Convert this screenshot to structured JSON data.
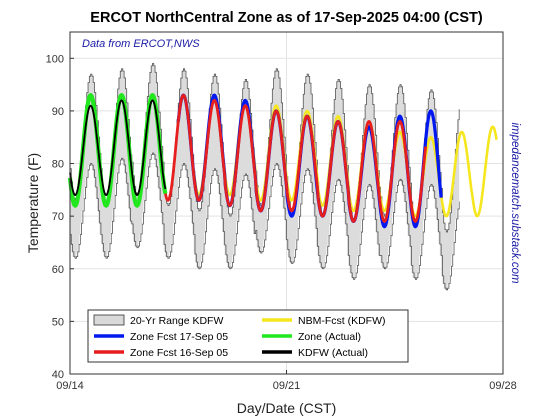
{
  "chart_data": {
    "type": "line",
    "title": "ERCOT NorthCentral Zone as of 17-Sep-2025 04:00 (CST)",
    "xlabel": "Day/Date (CST)",
    "ylabel": "Temperature (F)",
    "note": "Data from ERCOT,NWS",
    "side_text": "impedancematch.substack.com",
    "xlim": [
      0,
      14
    ],
    "ylim": [
      40,
      105
    ],
    "x_ticks": [
      {
        "x": 0,
        "label": "09/14"
      },
      {
        "x": 7,
        "label": "09/21"
      },
      {
        "x": 14,
        "label": "09/28"
      }
    ],
    "y_ticks": [
      40,
      50,
      60,
      70,
      80,
      90,
      100
    ],
    "grid": true,
    "legend_position": "bottom-left",
    "range_band": {
      "name": "20-Yr Range KDFW",
      "x_end": 12.6,
      "low_min": [
        62,
        62,
        64,
        62,
        60,
        60,
        63,
        61,
        60,
        58,
        60,
        58,
        56,
        56
      ],
      "low_max": [
        73,
        72,
        74,
        72,
        71,
        70,
        72,
        71,
        70,
        69,
        70,
        69,
        67,
        68
      ],
      "high_min": [
        80,
        81,
        82,
        80,
        79,
        78,
        80,
        79,
        77,
        76,
        77,
        76,
        74,
        74
      ],
      "high_max": [
        97,
        98,
        99,
        98,
        97,
        96,
        98,
        97,
        96,
        95,
        95,
        94,
        92,
        92
      ]
    },
    "series": [
      {
        "name": "NBM-Fcst (KDFW)",
        "color": "#f5e61e",
        "x_start": 4.0,
        "x_end": 13.8,
        "daily_low": [
          74,
          74,
          73,
          73,
          72,
          71,
          71,
          70,
          70,
          70
        ],
        "daily_high": [
          93,
          92,
          91,
          90,
          89,
          88,
          86,
          85,
          86,
          87
        ]
      },
      {
        "name": "Zone Fcst 17-Sep 05",
        "color": "#0018f0",
        "x_start": 3.5,
        "x_end": 12.0,
        "daily_low": [
          73,
          73,
          72,
          71,
          70,
          70,
          69,
          68,
          68
        ],
        "daily_high": [
          93,
          93,
          92,
          90,
          89,
          88,
          87,
          89,
          90
        ]
      },
      {
        "name": "Zone Fcst 16-Sep 05",
        "color": "#e61e1e",
        "x_start": 2.5,
        "x_end": 11.5,
        "daily_low": [
          73,
          73,
          73,
          72,
          71,
          71,
          70,
          69,
          69
        ],
        "daily_high": [
          93,
          93,
          92,
          91,
          90,
          89,
          88,
          88,
          88
        ]
      },
      {
        "name": "Zone (Actual)",
        "color": "#22e61e",
        "x_start": 0.0,
        "x_end": 3.1,
        "daily_low": [
          72,
          72,
          72,
          73
        ],
        "daily_high": [
          93,
          93,
          93,
          92
        ]
      },
      {
        "name": "KDFW (Actual)",
        "color": "#000000",
        "x_start": 0.0,
        "x_end": 3.1,
        "daily_low": [
          74,
          74,
          74,
          74
        ],
        "daily_high": [
          91,
          92,
          92,
          91
        ]
      }
    ],
    "legend": [
      {
        "name": "20-Yr Range KDFW",
        "color": "#d9d9d9",
        "kind": "patch"
      },
      {
        "name": "NBM-Fcst (KDFW)",
        "color": "#f5e61e",
        "kind": "line"
      },
      {
        "name": "Zone Fcst 17-Sep 05",
        "color": "#0018f0",
        "kind": "line"
      },
      {
        "name": "Zone (Actual)",
        "color": "#22e61e",
        "kind": "line"
      },
      {
        "name": "Zone Fcst 16-Sep 05",
        "color": "#e61e1e",
        "kind": "line"
      },
      {
        "name": "KDFW (Actual)",
        "color": "#000000",
        "kind": "line"
      }
    ]
  }
}
